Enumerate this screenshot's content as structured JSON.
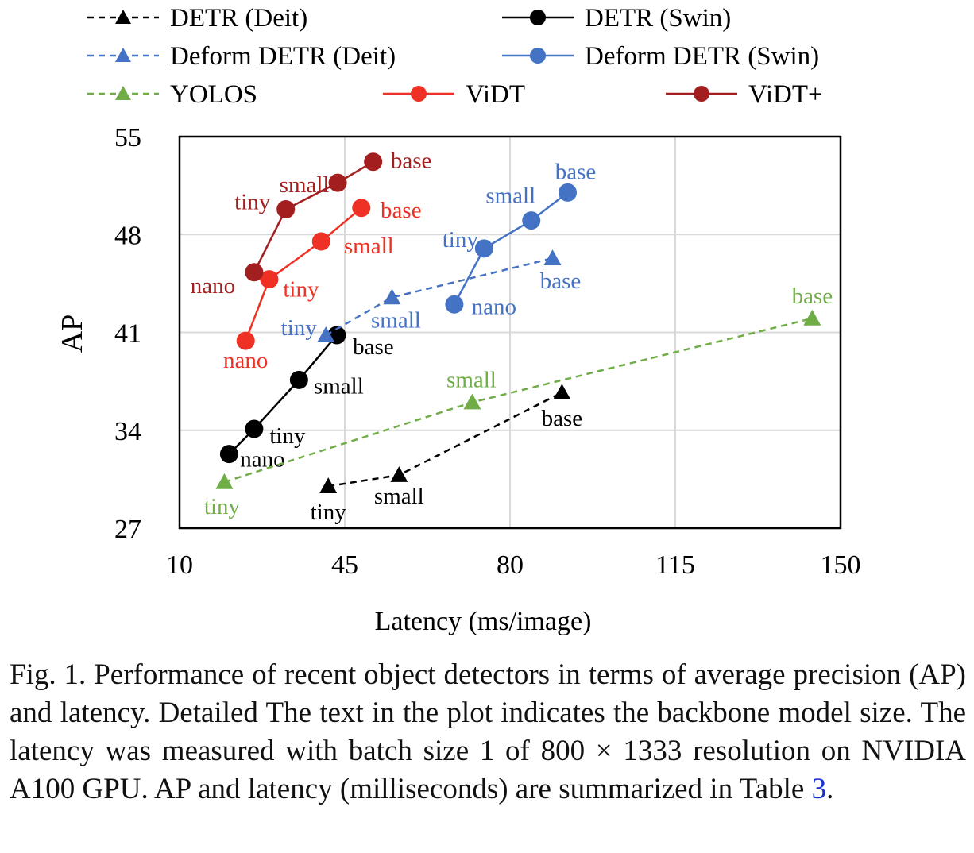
{
  "chart_data": {
    "type": "line",
    "xlabel": "Latency (ms/image)",
    "ylabel": "AP",
    "xlim": [
      10,
      150
    ],
    "ylim": [
      27,
      55
    ],
    "xticks": [
      10,
      45,
      80,
      115,
      150
    ],
    "yticks": [
      27,
      34,
      41,
      48,
      55
    ],
    "grid": true,
    "legend_position": "top",
    "series": [
      {
        "name": "DETR (Deit)",
        "color": "#000000",
        "marker": "triangle",
        "dash": true,
        "points": [
          {
            "x": 41.5,
            "y": 30.0,
            "label": "tiny"
          },
          {
            "x": 56.5,
            "y": 30.8,
            "label": "small"
          },
          {
            "x": 91.0,
            "y": 36.7,
            "label": "base"
          }
        ]
      },
      {
        "name": "DETR (Swin)",
        "color": "#000000",
        "marker": "circle",
        "dash": false,
        "points": [
          {
            "x": 20.5,
            "y": 32.3,
            "label": "nano"
          },
          {
            "x": 25.8,
            "y": 34.1,
            "label": "tiny"
          },
          {
            "x": 35.3,
            "y": 37.6,
            "label": "small"
          },
          {
            "x": 43.3,
            "y": 40.8,
            "label": "base"
          }
        ]
      },
      {
        "name": "Deform DETR (Deit)",
        "color": "#4472c4",
        "marker": "triangle",
        "dash": true,
        "points": [
          {
            "x": 41.0,
            "y": 40.8,
            "label": "tiny"
          },
          {
            "x": 55.0,
            "y": 43.5,
            "label": "small"
          },
          {
            "x": 89.0,
            "y": 46.3,
            "label": "base"
          }
        ]
      },
      {
        "name": "Deform DETR (Swin)",
        "color": "#4472c4",
        "marker": "circle",
        "dash": false,
        "points": [
          {
            "x": 68.2,
            "y": 43.0,
            "label": "nano"
          },
          {
            "x": 74.5,
            "y": 47.0,
            "label": "tiny"
          },
          {
            "x": 84.5,
            "y": 49.0,
            "label": "small"
          },
          {
            "x": 92.2,
            "y": 51.0,
            "label": "base"
          }
        ]
      },
      {
        "name": "YOLOS",
        "color": "#70ad47",
        "marker": "triangle",
        "dash": true,
        "points": [
          {
            "x": 19.5,
            "y": 30.3,
            "label": "tiny"
          },
          {
            "x": 72.0,
            "y": 36.0,
            "label": "small"
          },
          {
            "x": 144.0,
            "y": 42.0,
            "label": "base"
          }
        ]
      },
      {
        "name": "ViDT",
        "color": "#ee3124",
        "marker": "circle",
        "dash": false,
        "points": [
          {
            "x": 24.0,
            "y": 40.4,
            "label": "nano"
          },
          {
            "x": 29.0,
            "y": 44.8,
            "label": "tiny"
          },
          {
            "x": 40.0,
            "y": 47.5,
            "label": "small"
          },
          {
            "x": 48.5,
            "y": 49.9,
            "label": "base"
          }
        ]
      },
      {
        "name": "ViDT+",
        "color": "#a31f1f",
        "marker": "circle",
        "dash": false,
        "points": [
          {
            "x": 25.8,
            "y": 45.3,
            "label": "nano"
          },
          {
            "x": 32.5,
            "y": 49.8,
            "label": "tiny"
          },
          {
            "x": 43.5,
            "y": 51.7,
            "label": "small"
          },
          {
            "x": 51.0,
            "y": 53.2,
            "label": "base"
          }
        ]
      }
    ]
  },
  "caption": {
    "text": "Fig. 1. Performance of recent object detectors in terms of average precision (AP) and latency. Detailed The text in the plot indicates the backbone model size. The latency was measured with batch size 1 of 800 × 1333 resolution on NVIDIA A100 GPU. AP and latency (milliseconds) are summarized in Table ",
    "table_ref": "3",
    "end": "."
  }
}
